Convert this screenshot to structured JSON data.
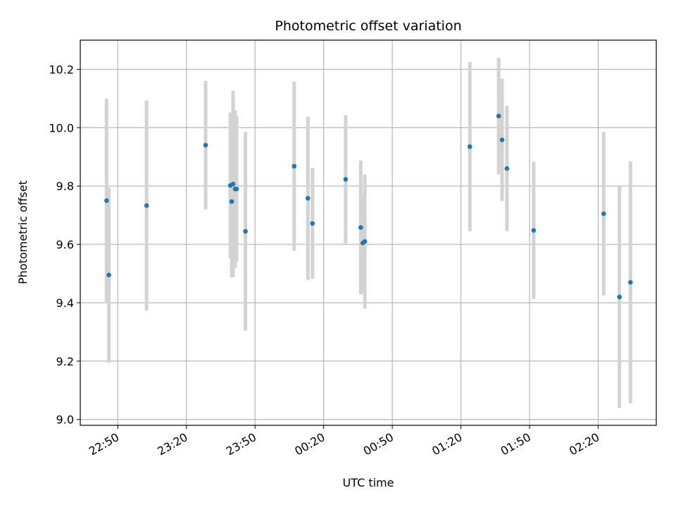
{
  "chart_data": {
    "type": "scatter",
    "title": "Photometric offset variation",
    "xlabel": "UTC time",
    "ylabel": "Photometric offset",
    "x_tick_labels": [
      "22:50",
      "23:20",
      "23:50",
      "00:20",
      "00:50",
      "01:20",
      "01:50",
      "02:20"
    ],
    "y_tick_labels": [
      "9.0",
      "9.2",
      "9.4",
      "9.6",
      "9.8",
      "10.0",
      "10.2"
    ],
    "x_ticks_minutes": [
      0,
      30,
      60,
      90,
      120,
      150,
      180,
      210
    ],
    "x_tick_times": [
      "22:50",
      "23:20",
      "23:50",
      "00:20",
      "00:50",
      "01:20",
      "01:50",
      "02:20"
    ],
    "xlim_minutes": [
      -16.4,
      235.4
    ],
    "ylim": [
      8.98,
      10.3
    ],
    "y_ticks": [
      9.0,
      9.2,
      9.4,
      9.6,
      9.8,
      10.0,
      10.2
    ],
    "grid": true,
    "marker_color": "#1f77b4",
    "errorbar_color": "#d3d3d3",
    "points": [
      {
        "t": -4.9,
        "y": 9.75,
        "err": 0.35
      },
      {
        "t": -3.9,
        "y": 9.495,
        "err": 0.3
      },
      {
        "t": 12.6,
        "y": 9.733,
        "err": 0.36
      },
      {
        "t": 38.4,
        "y": 9.94,
        "err": 0.22
      },
      {
        "t": 49.2,
        "y": 9.802,
        "err": 0.25
      },
      {
        "t": 49.8,
        "y": 9.747,
        "err": 0.26
      },
      {
        "t": 50.4,
        "y": 9.807,
        "err": 0.32
      },
      {
        "t": 51.3,
        "y": 9.79,
        "err": 0.27
      },
      {
        "t": 51.9,
        "y": 9.79,
        "err": 0.25
      },
      {
        "t": 55.8,
        "y": 9.645,
        "err": 0.34
      },
      {
        "t": 77.1,
        "y": 9.868,
        "err": 0.29
      },
      {
        "t": 83.1,
        "y": 9.758,
        "err": 0.28
      },
      {
        "t": 85.1,
        "y": 9.672,
        "err": 0.19
      },
      {
        "t": 99.6,
        "y": 9.823,
        "err": 0.22
      },
      {
        "t": 106.2,
        "y": 9.658,
        "err": 0.23
      },
      {
        "t": 107.1,
        "y": 9.605,
        "err": 0.17
      },
      {
        "t": 108.0,
        "y": 9.61,
        "err": 0.23
      },
      {
        "t": 153.9,
        "y": 9.935,
        "err": 0.29
      },
      {
        "t": 166.5,
        "y": 10.04,
        "err": 0.2
      },
      {
        "t": 168.0,
        "y": 9.958,
        "err": 0.21
      },
      {
        "t": 170.1,
        "y": 9.86,
        "err": 0.215
      },
      {
        "t": 181.8,
        "y": 9.648,
        "err": 0.235
      },
      {
        "t": 212.4,
        "y": 9.705,
        "err": 0.28
      },
      {
        "t": 219.3,
        "y": 9.42,
        "err": 0.38
      },
      {
        "t": 224.1,
        "y": 9.47,
        "err": 0.415
      }
    ]
  }
}
